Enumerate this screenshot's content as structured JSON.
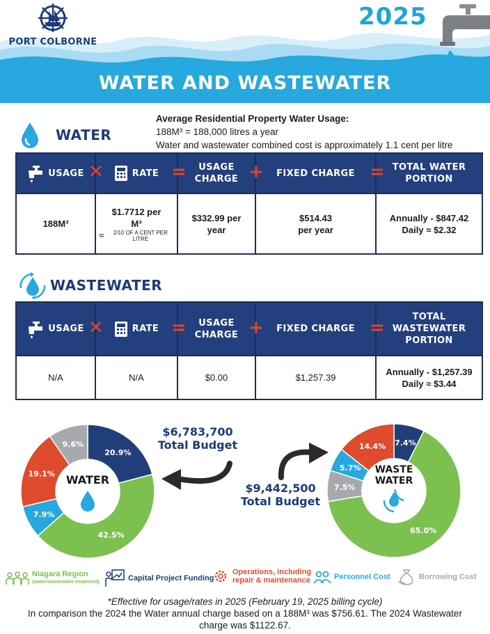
{
  "header": {
    "logo_text": "PORT COLBORNE",
    "year": "2025",
    "title": "WATER AND WASTEWATER"
  },
  "usage_info": {
    "heading": "Average Residential Property Water Usage:",
    "line1": "188M³ = 188,000 litres a year",
    "line2": "Water and wastewater combined cost is approximately 1.1 cent per litre"
  },
  "water": {
    "section_label": "WATER",
    "headers": {
      "usage": "USAGE",
      "rate": "RATE",
      "usage_charge_1": "USAGE",
      "usage_charge_2": "CHARGE",
      "fixed": "FIXED CHARGE",
      "total_1": "TOTAL WATER",
      "total_2": "PORTION"
    },
    "row": {
      "usage": "188M³",
      "rate_1": "$1.7712 per",
      "rate_2": "M³",
      "rate_note": "2/10 of a cent per litre",
      "usage_charge_1": "$332.99 per",
      "usage_charge_2": "year",
      "fixed_1": "$514.43",
      "fixed_2": "per year",
      "annual": "Annually - $847.42",
      "daily_label": "Daily",
      "daily_value": "$2.32"
    }
  },
  "wastewater": {
    "section_label": "WASTEWATER",
    "headers": {
      "usage": "USAGE",
      "rate": "RATE",
      "usage_charge_1": "USAGE",
      "usage_charge_2": "CHARGE",
      "fixed": "FIXED CHARGE",
      "total_1": "TOTAL",
      "total_2": "WASTEWATER",
      "total_3": "PORTION"
    },
    "row": {
      "usage": "N/A",
      "rate": "N/A",
      "usage_charge": "$0.00",
      "fixed": "$1,257.39",
      "annual": "Annually - $1,257.39",
      "daily_label": "Daily",
      "daily_value": "$3.44"
    }
  },
  "budgets": {
    "water": {
      "amount": "$6,783,700",
      "label": "Total Budget",
      "center": "WATER",
      "slices": [
        {
          "key": "capital",
          "label": "20.9%",
          "value": 20.9,
          "color": "#203f7a"
        },
        {
          "key": "region",
          "label": "42.5%",
          "value": 42.5,
          "color": "#7cc04f"
        },
        {
          "key": "personnel",
          "label": "7.9%",
          "value": 7.9,
          "color": "#27a8de"
        },
        {
          "key": "operations",
          "label": "19.1%",
          "value": 19.1,
          "color": "#de4b2d"
        },
        {
          "key": "borrowing",
          "label": "9.6%",
          "value": 9.6,
          "color": "#a7a9ac"
        }
      ]
    },
    "wastewater": {
      "amount": "$9,442,500",
      "label": "Total Budget",
      "center_1": "WASTE",
      "center_2": "WATER",
      "slices": [
        {
          "key": "capital",
          "label": "7.4%",
          "value": 7.4,
          "color": "#203f7a"
        },
        {
          "key": "region",
          "label": "65.0%",
          "value": 65.0,
          "color": "#7cc04f"
        },
        {
          "key": "borrowing",
          "label": "7.5%",
          "value": 7.5,
          "color": "#a7a9ac"
        },
        {
          "key": "personnel",
          "label": "5.7%",
          "value": 5.7,
          "color": "#27a8de"
        },
        {
          "key": "operations",
          "label": "14.4%",
          "value": 14.4,
          "color": "#de4b2d"
        }
      ]
    }
  },
  "legend": {
    "region": "Niagara Region",
    "region_sub": "(water/wastewater treatment)",
    "capital": "Capital Project Funding",
    "operations_1": "Operations, including",
    "operations_2": "repair & maintenance",
    "personnel": "Personnel Cost",
    "borrowing": "Borrowing Cost",
    "colors": {
      "region": "#7cc04f",
      "capital": "#203f7a",
      "operations": "#de4b2d",
      "personnel": "#27a8de",
      "borrowing": "#a7a9ac"
    }
  },
  "footer": {
    "line1": "*Effective for usage/rates in 2025 (February 19, 2025 billing cycle)",
    "line2": "In comparison the 2024 the Water annual charge based on a 188M³ was $756.61. The 2024 Wastewater",
    "line3": "charge was $1122.67."
  }
}
